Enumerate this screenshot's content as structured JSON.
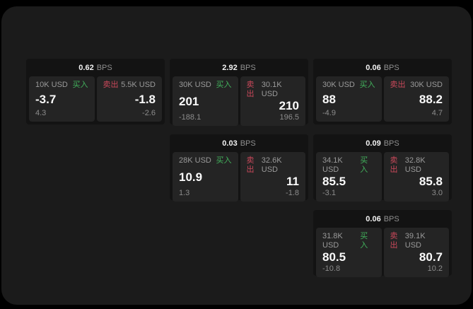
{
  "labels": {
    "buy": "买入",
    "sell": "卖出",
    "bps_unit": "BPS"
  },
  "colors": {
    "buy": "#42b15c",
    "sell": "#c9485a",
    "window_bg": "#1b1b1b",
    "card_bg": "#131313",
    "panel_bg": "#242424"
  },
  "cards": [
    {
      "bps": "0.62",
      "buy": {
        "amount": "10K USD",
        "value": "-3.7",
        "sub": "4.3"
      },
      "sell": {
        "amount": "5.5K USD",
        "value": "-1.8",
        "sub": "-2.6"
      }
    },
    {
      "bps": "2.92",
      "buy": {
        "amount": "30K USD",
        "value": "201",
        "sub": "-188.1"
      },
      "sell": {
        "amount": "30.1K USD",
        "value": "210",
        "sub": "196.5"
      }
    },
    {
      "bps": "0.06",
      "buy": {
        "amount": "30K USD",
        "value": "88",
        "sub": "-4.9"
      },
      "sell": {
        "amount": "30K USD",
        "value": "88.2",
        "sub": "4.7"
      }
    },
    {
      "bps": "0.03",
      "buy": {
        "amount": "28K USD",
        "value": "10.9",
        "sub": "1.3"
      },
      "sell": {
        "amount": "32.6K USD",
        "value": "11",
        "sub": "-1.8"
      }
    },
    {
      "bps": "0.09",
      "buy": {
        "amount": "34.1K USD",
        "value": "85.5",
        "sub": "-3.1"
      },
      "sell": {
        "amount": "32.8K USD",
        "value": "85.8",
        "sub": "3.0"
      }
    },
    {
      "bps": "0.06",
      "buy": {
        "amount": "31.8K USD",
        "value": "80.5",
        "sub": "-10.8"
      },
      "sell": {
        "amount": "39.1K USD",
        "value": "80.7",
        "sub": "10.2"
      }
    }
  ]
}
